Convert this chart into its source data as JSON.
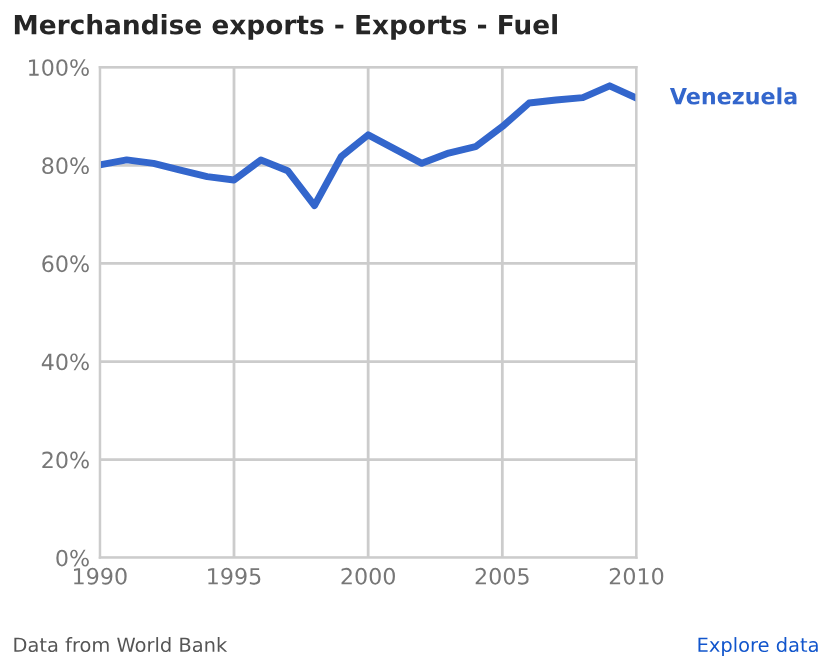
{
  "chart_data": {
    "type": "line",
    "title": "Merchandise exports - Exports - Fuel",
    "x": [
      1990,
      1991,
      1992,
      1993,
      1994,
      1995,
      1996,
      1997,
      1998,
      1999,
      2000,
      2001,
      2002,
      2003,
      2004,
      2005,
      2006,
      2007,
      2008,
      2009,
      2010
    ],
    "series": [
      {
        "name": "Venezuela",
        "color": "#3366cc",
        "values": [
          80.1,
          81.1,
          80.4,
          79.0,
          77.7,
          77.0,
          81.1,
          78.9,
          71.8,
          81.8,
          86.2,
          83.3,
          80.4,
          82.5,
          83.8,
          87.9,
          92.7,
          93.3,
          93.8,
          96.2,
          93.7
        ]
      }
    ],
    "xlim": [
      1990,
      2010
    ],
    "xticks": [
      1990,
      1995,
      2000,
      2005,
      2010
    ],
    "ylim": [
      0,
      100
    ],
    "yticks": [
      {
        "value": 0,
        "label": "0%"
      },
      {
        "value": 20,
        "label": "20%"
      },
      {
        "value": 40,
        "label": "40%"
      },
      {
        "value": 60,
        "label": "60%"
      },
      {
        "value": 80,
        "label": "80%"
      },
      {
        "value": 100,
        "label": "100%"
      }
    ],
    "grid": true,
    "line_style": "solid",
    "marker": "none",
    "annotations": [
      "Data from World Bank",
      "Explore data"
    ]
  }
}
